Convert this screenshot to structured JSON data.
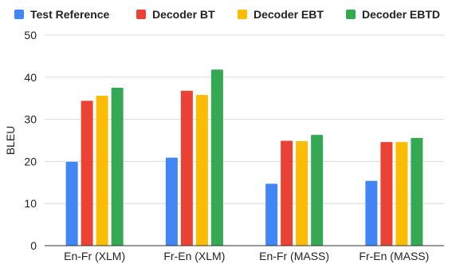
{
  "chart_data": {
    "type": "bar",
    "categories": [
      "En-Fr (XLM)",
      "Fr-En (XLM)",
      "En-Fr (MASS)",
      "Fr-En (MASS)"
    ],
    "series": [
      {
        "name": "Test Reference",
        "color": "#4285f4",
        "values": [
          19.9,
          20.9,
          14.7,
          15.4
        ]
      },
      {
        "name": "Decoder BT",
        "color": "#ea4335",
        "values": [
          34.4,
          36.8,
          24.9,
          24.6
        ]
      },
      {
        "name": "Decoder EBT",
        "color": "#fbbc04",
        "values": [
          35.6,
          35.8,
          24.8,
          24.6
        ]
      },
      {
        "name": "Decoder EBTD",
        "color": "#34a853",
        "values": [
          37.5,
          41.8,
          26.3,
          25.6
        ]
      }
    ],
    "ylabel": "BLEU",
    "ylim": [
      0,
      50
    ],
    "yticks": [
      0,
      10,
      20,
      30,
      40,
      50
    ],
    "grid": true,
    "legend_position": "top"
  }
}
